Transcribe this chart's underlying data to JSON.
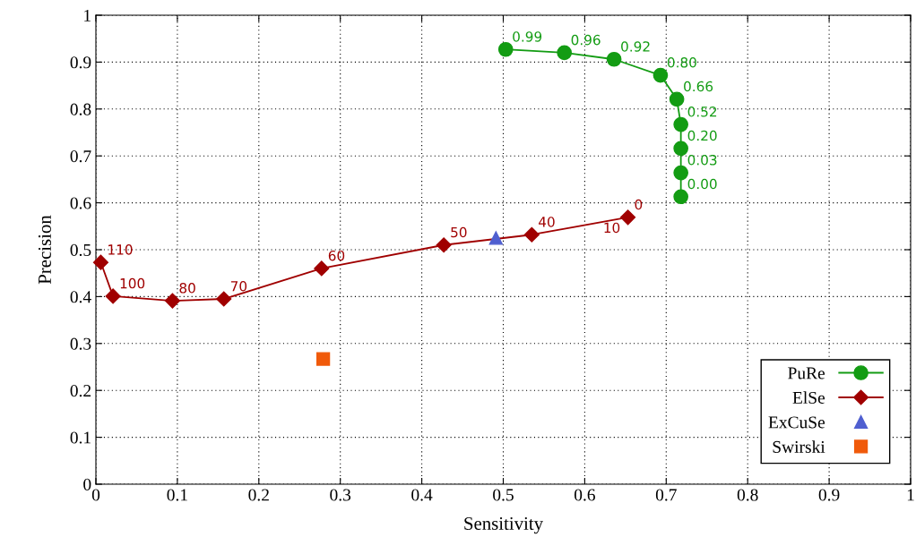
{
  "chart_data": {
    "type": "line",
    "xlabel": "Sensitivity",
    "ylabel": "Precision",
    "xlim": [
      0,
      1
    ],
    "ylim": [
      0,
      1
    ],
    "xticks": [
      0,
      0.1,
      0.2,
      0.3,
      0.4,
      0.5,
      0.6,
      0.7,
      0.8,
      0.9,
      1
    ],
    "yticks": [
      0,
      0.1,
      0.2,
      0.3,
      0.4,
      0.5,
      0.6,
      0.7,
      0.8,
      0.9,
      1
    ],
    "grid": true,
    "legend": "bottom right",
    "series": [
      {
        "name": "PuRe",
        "marker": "circle",
        "color": "#139c13",
        "x": [
          0.503,
          0.575,
          0.636,
          0.693,
          0.713,
          0.718,
          0.718,
          0.718,
          0.718
        ],
        "values": [
          0.927,
          0.92,
          0.906,
          0.872,
          0.821,
          0.767,
          0.716,
          0.664,
          0.613
        ]
      },
      {
        "name": "ElSe",
        "marker": "diamond",
        "color": "#a00000",
        "x": [
          0.006,
          0.021,
          0.094,
          0.157,
          0.277,
          0.427,
          0.535,
          0.653
        ],
        "values": [
          0.473,
          0.401,
          0.391,
          0.395,
          0.46,
          0.51,
          0.532,
          0.569
        ]
      },
      {
        "name": "ExCuSe",
        "type": "scatter",
        "marker": "triangle",
        "color": "#4f5fd0",
        "x": [
          0.491
        ],
        "values": [
          0.525
        ]
      },
      {
        "name": "Swirski",
        "type": "scatter",
        "marker": "square",
        "color": "#f05a0a",
        "x": [
          0.279
        ],
        "values": [
          0.267
        ]
      }
    ],
    "annotations": [
      {
        "text": "0.99",
        "x": 0.503,
        "y": 0.927
      },
      {
        "text": "0.96",
        "x": 0.575,
        "y": 0.92
      },
      {
        "text": "0.92",
        "x": 0.636,
        "y": 0.906
      },
      {
        "text": "0.80",
        "x": 0.693,
        "y": 0.872
      },
      {
        "text": "0.66",
        "x": 0.713,
        "y": 0.821
      },
      {
        "text": "0.52",
        "x": 0.718,
        "y": 0.767
      },
      {
        "text": "0.20",
        "x": 0.718,
        "y": 0.716
      },
      {
        "text": "0.03",
        "x": 0.718,
        "y": 0.664
      },
      {
        "text": "0.00",
        "x": 0.718,
        "y": 0.613
      },
      {
        "text": "110",
        "x": 0.006,
        "y": 0.473
      },
      {
        "text": "100",
        "x": 0.021,
        "y": 0.401
      },
      {
        "text": "80",
        "x": 0.094,
        "y": 0.391
      },
      {
        "text": "70",
        "x": 0.157,
        "y": 0.395
      },
      {
        "text": "60",
        "x": 0.277,
        "y": 0.46
      },
      {
        "text": "50",
        "x": 0.427,
        "y": 0.51
      },
      {
        "text": "40",
        "x": 0.535,
        "y": 0.532
      },
      {
        "text": "10",
        "x": 0.653,
        "y": 0.569
      },
      {
        "text": "0",
        "x": 0.653,
        "y": 0.569
      }
    ]
  }
}
